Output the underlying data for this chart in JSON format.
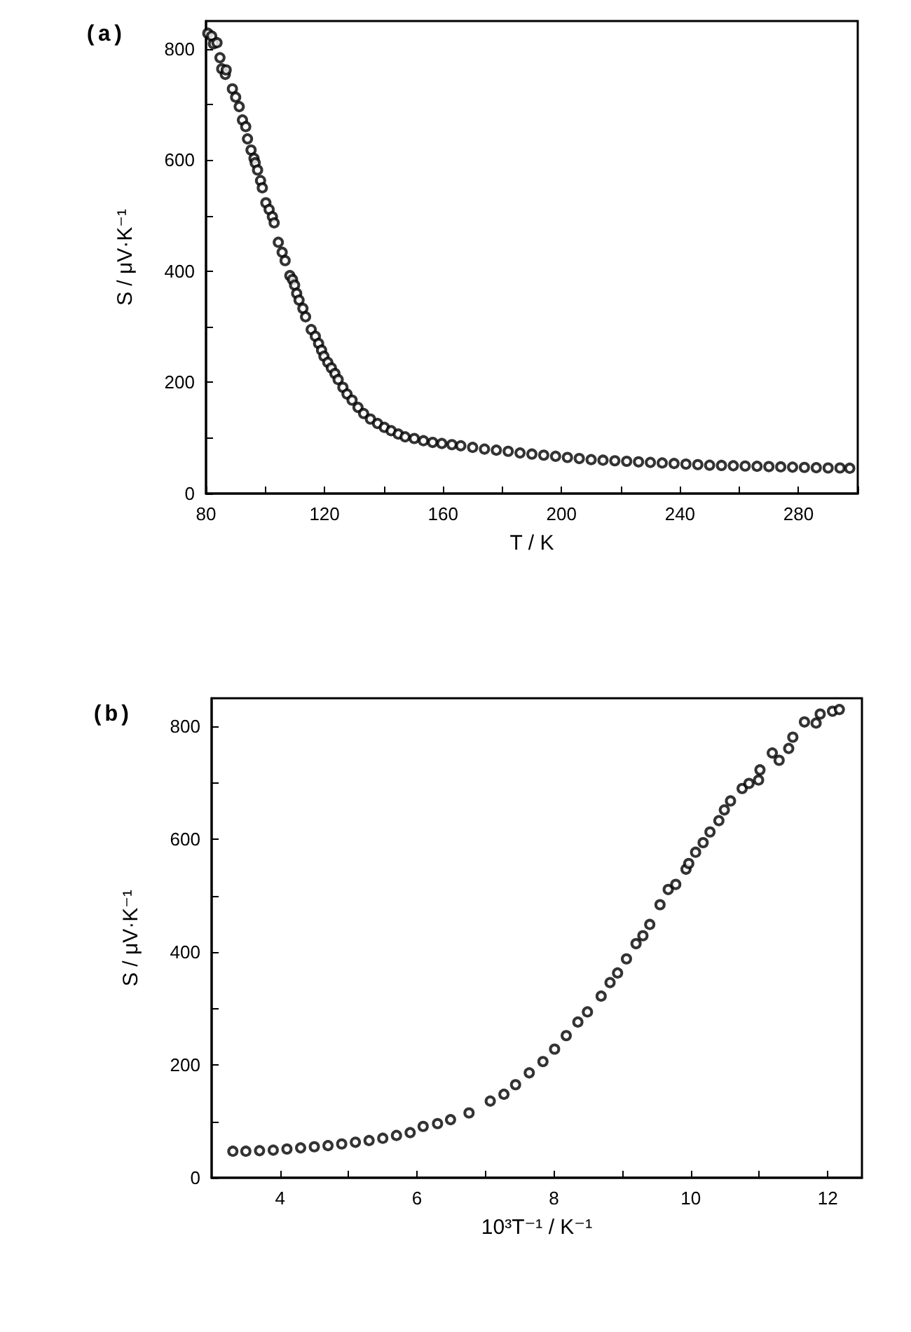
{
  "chart_data": [
    {
      "type": "scatter",
      "title": "(a)",
      "xlabel": "T / K",
      "ylabel": "S / μV·K⁻¹",
      "marker": "circle",
      "xlim": [
        80,
        300
      ],
      "ylim": [
        0,
        850
      ],
      "xticks": [
        80,
        {
          "value": 100,
          "label": null
        },
        120,
        {
          "value": 140,
          "label": null
        },
        160,
        {
          "value": 180,
          "label": null
        },
        200,
        {
          "value": 220,
          "label": null
        },
        240,
        {
          "value": 260,
          "label": null
        },
        280,
        {
          "value": 300,
          "label": null
        }
      ],
      "yticks": [
        0,
        {
          "value": 100,
          "label": null
        },
        200,
        {
          "value": 300,
          "label": null
        },
        400,
        {
          "value": 500,
          "label": null
        },
        600,
        {
          "value": 700,
          "label": null
        },
        800
      ],
      "series": [
        {
          "color": "#000000",
          "x": [
            80.6,
            81.9,
            82.5,
            83.7,
            84.7,
            85.3,
            86.5,
            86.8,
            88.9,
            90,
            91.2,
            92.3,
            93.4,
            94,
            95.2,
            96.2,
            96.6,
            97.4,
            98.4,
            99,
            100.2,
            101.3,
            102.4,
            103,
            104.4,
            105.7,
            106.7,
            108.3,
            109.2,
            109.9,
            110.6,
            111.4,
            112.7,
            113.6,
            115.5,
            116.9,
            118,
            119,
            119.8,
            121.1,
            122.3,
            123.5,
            124.6,
            126.2,
            127.6,
            129.3,
            131.3,
            133.2,
            135.5,
            137.9,
            140.2,
            142.5,
            144.9,
            147.2,
            150.3,
            153.4,
            156.5,
            159.6,
            163,
            166,
            170,
            174,
            178,
            182,
            186,
            190,
            194,
            198,
            202,
            206,
            210,
            214,
            218,
            222,
            226,
            230,
            234,
            238,
            242,
            246,
            250,
            254,
            258,
            262,
            266,
            270,
            274,
            278,
            282,
            286,
            290,
            294,
            297.3
          ],
          "values": [
            828,
            823,
            809,
            811,
            784,
            764,
            754,
            762,
            728,
            713,
            696,
            672,
            660,
            638,
            618,
            603,
            595,
            582,
            563,
            550,
            523,
            511,
            498,
            487,
            452,
            434,
            419,
            392,
            385,
            375,
            360,
            348,
            333,
            318,
            295,
            283,
            270,
            258,
            247,
            236,
            226,
            216,
            205,
            191,
            179,
            168,
            155,
            144,
            134,
            126,
            119,
            113,
            107,
            102,
            99,
            95,
            92,
            90,
            88,
            86,
            83,
            80,
            78,
            76,
            73,
            71,
            69,
            67,
            65,
            63,
            61,
            60,
            59,
            58,
            57,
            56,
            55,
            54,
            53,
            52,
            51,
            50.5,
            50,
            49.5,
            49,
            48.5,
            48,
            47.5,
            47,
            46.5,
            46,
            46,
            45.5
          ]
        }
      ]
    },
    {
      "type": "scatter",
      "title": "(b)",
      "xlabel": "10³T⁻¹ / K⁻¹",
      "ylabel": "S / μV·K⁻¹",
      "marker": "circle",
      "xlim": [
        3,
        12.5
      ],
      "ylim": [
        0,
        850
      ],
      "xticks": [
        4,
        {
          "value": 5,
          "label": null
        },
        6,
        {
          "value": 7,
          "label": null
        },
        8,
        {
          "value": 9,
          "label": null
        },
        10,
        {
          "value": 11,
          "label": null
        },
        12
      ],
      "yticks": [
        0,
        {
          "value": 100,
          "label": null
        },
        200,
        {
          "value": 300,
          "label": null
        },
        400,
        {
          "value": 500,
          "label": null
        },
        600,
        {
          "value": 700,
          "label": null
        },
        800
      ],
      "series": [
        {
          "color": "#000000",
          "x": [
            3.31,
            3.5,
            3.7,
            3.9,
            4.1,
            4.3,
            4.5,
            4.7,
            4.9,
            5.1,
            5.3,
            5.5,
            5.7,
            5.9,
            6.09,
            6.3,
            6.49,
            6.76,
            7.07,
            7.27,
            7.44,
            7.64,
            7.84,
            8.01,
            8.18,
            8.35,
            8.49,
            8.69,
            8.82,
            8.93,
            9.06,
            9.2,
            9.3,
            9.4,
            9.55,
            9.67,
            9.78,
            9.93,
            9.97,
            10.07,
            10.18,
            10.28,
            10.41,
            10.49,
            10.58,
            10.75,
            10.85,
            10.99,
            11.01,
            11.19,
            11.29,
            11.43,
            11.49,
            11.66,
            11.83,
            11.89,
            12.07,
            12.17
          ],
          "values": [
            47,
            47,
            48,
            49,
            51,
            53,
            55,
            57,
            60,
            63,
            66,
            70,
            75,
            80,
            91,
            96,
            103,
            115,
            136,
            148,
            165,
            186,
            206,
            228,
            252,
            276,
            294,
            322,
            346,
            363,
            388,
            415,
            429,
            449,
            484,
            511,
            520,
            547,
            557,
            577,
            594,
            613,
            633,
            652,
            668,
            690,
            699,
            705,
            723,
            753,
            740,
            761,
            781,
            808,
            806,
            822,
            827,
            830
          ]
        }
      ]
    }
  ]
}
